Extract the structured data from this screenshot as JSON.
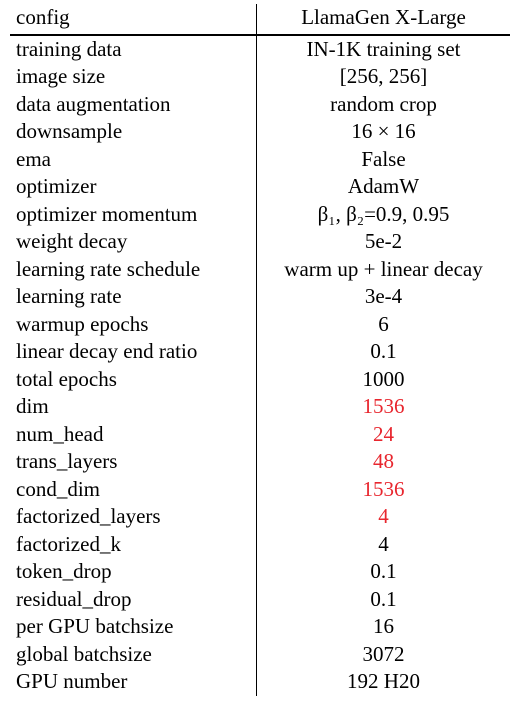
{
  "header": {
    "config": "config",
    "model": "LlamaGen X-Large"
  },
  "rows": [
    {
      "config": "training data",
      "value": "IN-1K training set",
      "highlight": false
    },
    {
      "config": "image size",
      "value": "[256, 256]",
      "highlight": false
    },
    {
      "config": "data augmentation",
      "value": "random crop",
      "highlight": false
    },
    {
      "config": "downsample",
      "value": "16 × 16",
      "highlight": false
    },
    {
      "config": "ema",
      "value": "False",
      "highlight": false
    },
    {
      "config": "optimizer",
      "value": "AdamW",
      "highlight": false
    },
    {
      "config": "optimizer momentum",
      "value": "β₁, β₂=0.9, 0.95",
      "highlight": false
    },
    {
      "config": "weight decay",
      "value": "5e-2",
      "highlight": false
    },
    {
      "config": "learning rate schedule",
      "value": "warm up + linear decay",
      "highlight": false
    },
    {
      "config": "learning rate",
      "value": "3e-4",
      "highlight": false
    },
    {
      "config": "warmup epochs",
      "value": "6",
      "highlight": false
    },
    {
      "config": "linear decay end ratio",
      "value": "0.1",
      "highlight": false
    },
    {
      "config": "total epochs",
      "value": "1000",
      "highlight": false
    },
    {
      "config": "dim",
      "value": "1536",
      "highlight": true
    },
    {
      "config": "num_head",
      "value": "24",
      "highlight": true
    },
    {
      "config": "trans_layers",
      "value": "48",
      "highlight": true
    },
    {
      "config": "cond_dim",
      "value": "1536",
      "highlight": true
    },
    {
      "config": "factorized_layers",
      "value": "4",
      "highlight": true
    },
    {
      "config": "factorized_k",
      "value": "4",
      "highlight": false
    },
    {
      "config": "token_drop",
      "value": "0.1",
      "highlight": false
    },
    {
      "config": "residual_drop",
      "value": "0.1",
      "highlight": false
    },
    {
      "config": "per GPU batchsize",
      "value": "16",
      "highlight": false
    },
    {
      "config": "global batchsize",
      "value": "3072",
      "highlight": false
    },
    {
      "config": "GPU number",
      "value": "192 H20",
      "highlight": false
    }
  ]
}
